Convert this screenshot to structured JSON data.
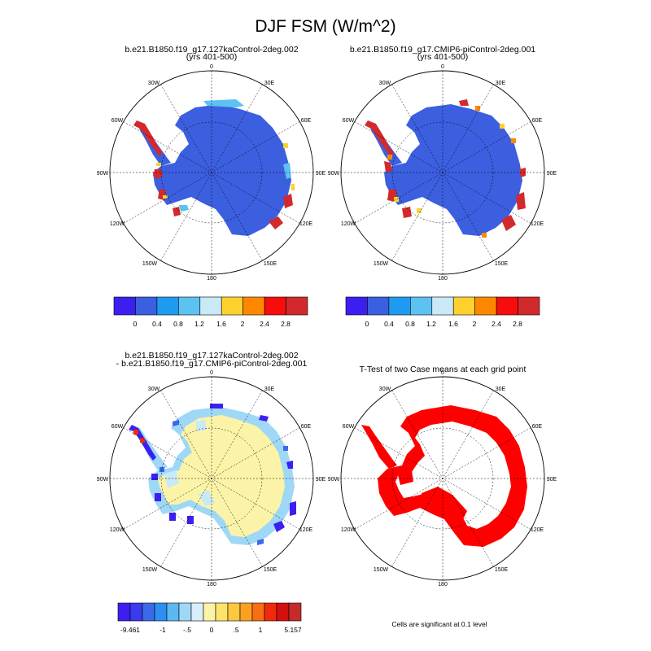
{
  "figure": {
    "title": "DJF FSM (W/m^2)",
    "note": "Cells are significant at 0.1 level"
  },
  "chart_data": [
    {
      "type": "map",
      "projection": "south-polar-stereographic",
      "title_line1": "b.e21.B1850.f19_g17.127kaControl-2deg.002",
      "title_line2": "(yrs 401-500)",
      "lon_labels": [
        "0",
        "30E",
        "60E",
        "90E",
        "120E",
        "150E",
        "180",
        "150W",
        "120W",
        "90W",
        "60W",
        "30W"
      ],
      "field": "DJF FSM (W/m^2)",
      "interior_value_bin": "0 to 0.4",
      "coast_high_value_bins": [
        "2.4-2.8",
        ">2.8"
      ],
      "colorbar": {
        "labels": [
          "0",
          "0.4",
          "0.8",
          "1.2",
          "1.6",
          "2",
          "2.4",
          "2.8"
        ],
        "colors": [
          "#3c1ff0",
          "#3a5fe0",
          "#1d9bf0",
          "#5cc2f2",
          "#c9e9f6",
          "#fed12e",
          "#fd8800",
          "#f80d0d",
          "#d22a2c"
        ]
      }
    },
    {
      "type": "map",
      "projection": "south-polar-stereographic",
      "title_line1": "b.e21.B1850.f19_g17.CMIP6-piControl-2deg.001",
      "title_line2": "(yrs 401-500)",
      "lon_labels": [
        "0",
        "30E",
        "60E",
        "90E",
        "120E",
        "150E",
        "180",
        "150W",
        "120W",
        "90W",
        "60W",
        "30W"
      ],
      "field": "DJF FSM (W/m^2)",
      "interior_value_bin": "0 to 0.4",
      "coast_high_value_bins": [
        "2.4-2.8",
        ">2.8"
      ],
      "colorbar": {
        "labels": [
          "0",
          "0.4",
          "0.8",
          "1.2",
          "1.6",
          "2",
          "2.4",
          "2.8"
        ],
        "colors": [
          "#3c1ff0",
          "#3a5fe0",
          "#1d9bf0",
          "#5cc2f2",
          "#c9e9f6",
          "#fed12e",
          "#fd8800",
          "#f80d0d",
          "#d22a2c"
        ]
      }
    },
    {
      "type": "map",
      "projection": "south-polar-stereographic",
      "title_line1": "b.e21.B1850.f19_g17.127kaControl-2deg.002",
      "title_line2": "- b.e21.B1850.f19_g17.CMIP6-piControl-2deg.001",
      "lon_labels": [
        "0",
        "30E",
        "60E",
        "90E",
        "120E",
        "150E",
        "180",
        "150W",
        "120W",
        "90W",
        "60W",
        "30W"
      ],
      "field": "difference",
      "interior_value_bin": "0 to .5",
      "colorbar": {
        "labels": [
          "-9.461",
          "-1",
          "-.5",
          "0",
          ".5",
          "1",
          "5.157"
        ],
        "colors": [
          "#3c1ff0",
          "#3a3af0",
          "#3a6ae8",
          "#2c8ff2",
          "#5cb8f2",
          "#9fd8f6",
          "#d8eef8",
          "#fbf4a8",
          "#fde36a",
          "#fec740",
          "#fda022",
          "#f86e10",
          "#f22a0c",
          "#d40f0f",
          "#c42b2b"
        ]
      }
    },
    {
      "type": "map",
      "projection": "south-polar-stereographic",
      "title_line1": "T-Test of two Case means at each grid point",
      "lon_labels": [
        "0",
        "30E",
        "60E",
        "90E",
        "120E",
        "150E",
        "180",
        "150W",
        "120W",
        "90W",
        "60W",
        "30W"
      ],
      "field": "significance",
      "significant_color": "#ff0000"
    }
  ]
}
